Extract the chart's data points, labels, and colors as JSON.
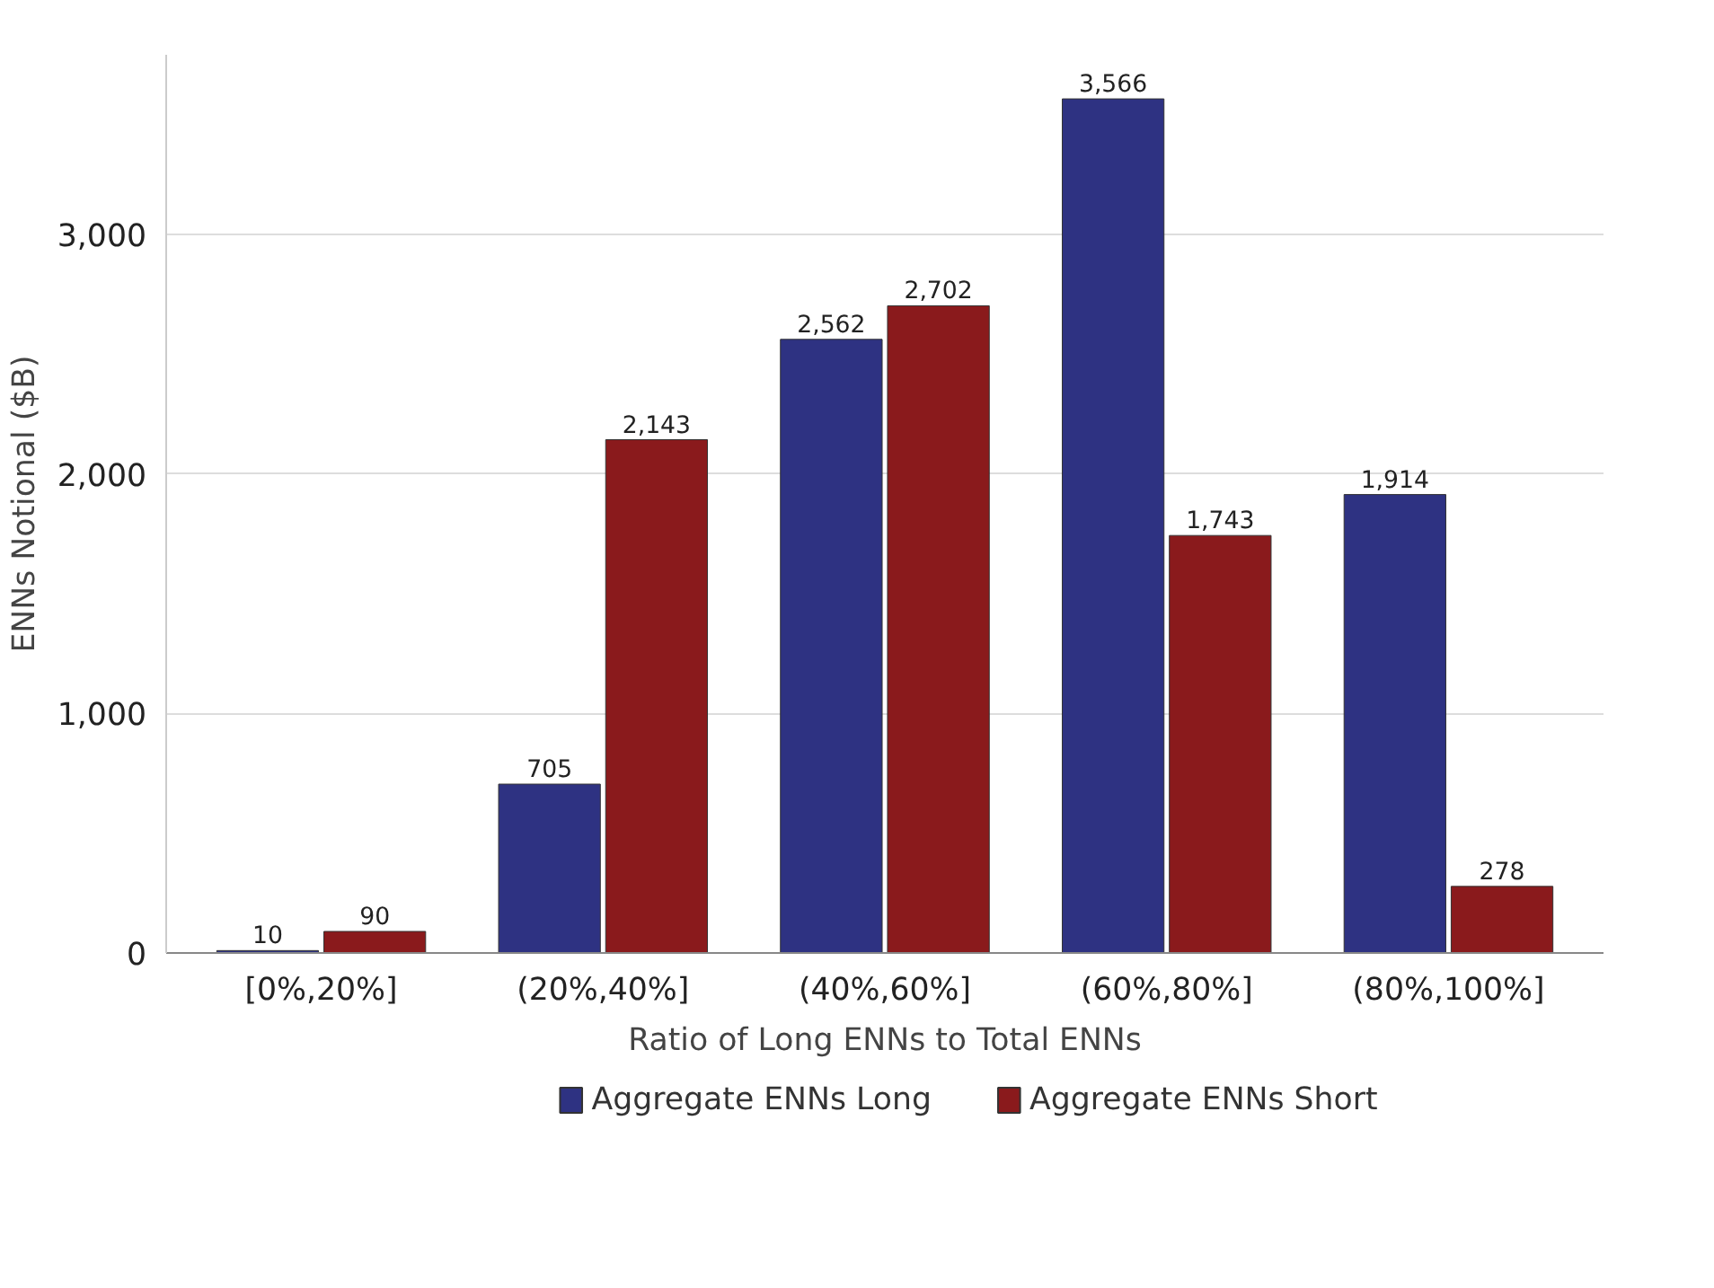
{
  "chart_data": {
    "type": "bar",
    "xlabel": "Ratio of Long ENNs to Total ENNs",
    "ylabel": "ENNs Notional ($B)",
    "categories": [
      "[0%,20%]",
      "(20%,40%]",
      "(40%,60%]",
      "(60%,80%]",
      "(80%,100%]"
    ],
    "series": [
      {
        "name": "Aggregate ENNs Long",
        "color": "#2e3282",
        "values": [
          10,
          705,
          2562,
          3566,
          1914
        ],
        "value_labels": [
          "10",
          "705",
          "2,562",
          "3,566",
          "1,914"
        ]
      },
      {
        "name": "Aggregate ENNs Short",
        "color": "#8a1a1c",
        "values": [
          90,
          2143,
          2702,
          1743,
          278
        ],
        "value_labels": [
          "90",
          "2,143",
          "2,702",
          "1,743",
          "278"
        ]
      }
    ],
    "ylim": [
      0,
      3750
    ],
    "yticks": [
      0,
      {
        "value": 1000,
        "label": "1,000"
      },
      {
        "value": 2000,
        "label": "2,000"
      },
      {
        "value": 3000,
        "label": "3,000"
      }
    ],
    "grid": "y",
    "legend": "bottom"
  }
}
